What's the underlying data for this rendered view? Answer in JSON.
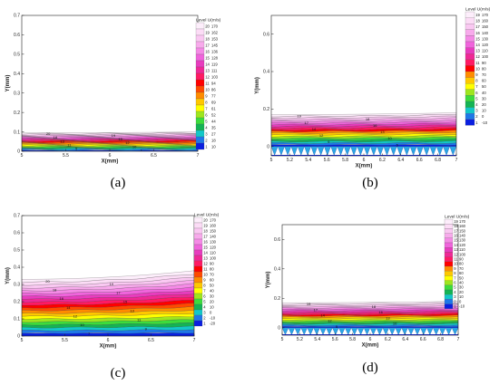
{
  "chart_data": [
    {
      "type": "heatmap",
      "panel_label": "(a)",
      "xlabel": "X(mm)",
      "ylabel": "Y(mm)",
      "xlim": [
        5,
        7
      ],
      "ylim": [
        0,
        0.7
      ],
      "xticks": [
        "5",
        "5.5",
        "6",
        "6.5",
        "7"
      ],
      "yticks": [
        "0",
        "0.1",
        "0.2",
        "0.3",
        "0.4",
        "0.5",
        "0.6",
        "0.7"
      ],
      "legend_title": "Level U(m/s)",
      "legend_levels": [
        "20",
        "19",
        "18",
        "17",
        "16",
        "15",
        "14",
        "13",
        "12",
        "11",
        "10",
        "9",
        "8",
        "7",
        "6",
        "5",
        "4",
        "3",
        "2",
        "1"
      ],
      "legend_values": [
        "170",
        "162",
        "153",
        "145",
        "136",
        "128",
        "119",
        "111",
        "103",
        "94",
        "86",
        "77",
        "69",
        "61",
        "52",
        "44",
        "35",
        "27",
        "18",
        "10"
      ],
      "surface_top": [
        0.095,
        0.1
      ],
      "contour_labels": [
        "20",
        "19",
        "18",
        "15",
        "13",
        "12",
        "11",
        "10",
        "5",
        "1"
      ],
      "riblets": false
    },
    {
      "type": "heatmap",
      "panel_label": "(b)",
      "xlabel": "X(mm)",
      "ylabel": "Y(mm)",
      "xlim": [
        5,
        7
      ],
      "ylim": [
        -0.05,
        0.7
      ],
      "xticks": [
        "5",
        "5.2",
        "5.4",
        "5.6",
        "5.8",
        "6",
        "6.2",
        "6.4",
        "6.6",
        "6.8",
        "7"
      ],
      "yticks": [
        "0",
        "0.2",
        "0.4",
        "0.6"
      ],
      "legend_title": "Level U(m/s)",
      "legend_levels": [
        "19",
        "18",
        "17",
        "16",
        "15",
        "14",
        "13",
        "12",
        "11",
        "10",
        "9",
        "8",
        "7",
        "6",
        "5",
        "4",
        "3",
        "2",
        "1"
      ],
      "legend_values": [
        "170",
        "160",
        "150",
        "140",
        "130",
        "120",
        "110",
        "100",
        "90",
        "80",
        "70",
        "60",
        "50",
        "40",
        "30",
        "20",
        "10",
        "0",
        "-10"
      ],
      "surface_top": [
        0.17,
        0.18
      ],
      "contour_labels": [
        "19",
        "18",
        "17",
        "16",
        "14",
        "13",
        "12",
        "10",
        "9",
        "5"
      ],
      "riblets": true
    },
    {
      "type": "heatmap",
      "panel_label": "(c)",
      "xlabel": "X(mm)",
      "ylabel": "Y(mm)",
      "xlim": [
        5,
        7
      ],
      "ylim": [
        0,
        0.7
      ],
      "xticks": [
        "5",
        "5.5",
        "6",
        "6.5",
        "7"
      ],
      "yticks": [
        "0",
        "0.1",
        "0.2",
        "0.3",
        "0.4",
        "0.5",
        "0.6",
        "0.7"
      ],
      "legend_title": "Level U(m/s)",
      "legend_levels": [
        "20",
        "19",
        "18",
        "17",
        "16",
        "15",
        "14",
        "13",
        "12",
        "11",
        "10",
        "9",
        "8",
        "7",
        "6",
        "5",
        "4",
        "3",
        "2",
        "1"
      ],
      "legend_values": [
        "170",
        "160",
        "150",
        "140",
        "130",
        "120",
        "110",
        "100",
        "90",
        "80",
        "70",
        "60",
        "50",
        "40",
        "30",
        "20",
        "10",
        "0",
        "-10",
        "-20"
      ],
      "surface_top": [
        0.33,
        0.38
      ],
      "contour_labels": [
        "20",
        "19",
        "18",
        "17",
        "16",
        "15",
        "14",
        "13",
        "12",
        "11",
        "10",
        "9",
        "7"
      ],
      "riblets": true
    },
    {
      "type": "heatmap",
      "panel_label": "(d)",
      "xlabel": "X(mm)",
      "ylabel": "Y(mm)",
      "xlim": [
        5,
        7
      ],
      "ylim": [
        -0.05,
        0.7
      ],
      "xticks": [
        "5",
        "5.2",
        "5.4",
        "5.6",
        "5.8",
        "6",
        "6.2",
        "6.4",
        "6.6",
        "6.8",
        "7"
      ],
      "yticks": [
        "0",
        "0.2",
        "0.4",
        "0.6"
      ],
      "legend_title": "Level U(m/s)",
      "legend_levels": [
        "19",
        "18",
        "17",
        "16",
        "15",
        "14",
        "13",
        "12",
        "11",
        "10",
        "9",
        "8",
        "7",
        "6",
        "5",
        "4",
        "3",
        "2",
        "1"
      ],
      "legend_values": [
        "170",
        "160",
        "150",
        "140",
        "130",
        "120",
        "110",
        "100",
        "90",
        "80",
        "70",
        "60",
        "50",
        "40",
        "30",
        "20",
        "10",
        "0",
        "-10"
      ],
      "surface_top": [
        0.17,
        0.18
      ],
      "contour_labels": [
        "19",
        "18",
        "17",
        "16",
        "14",
        "13",
        "12",
        "10",
        "5"
      ],
      "riblets": true
    }
  ]
}
